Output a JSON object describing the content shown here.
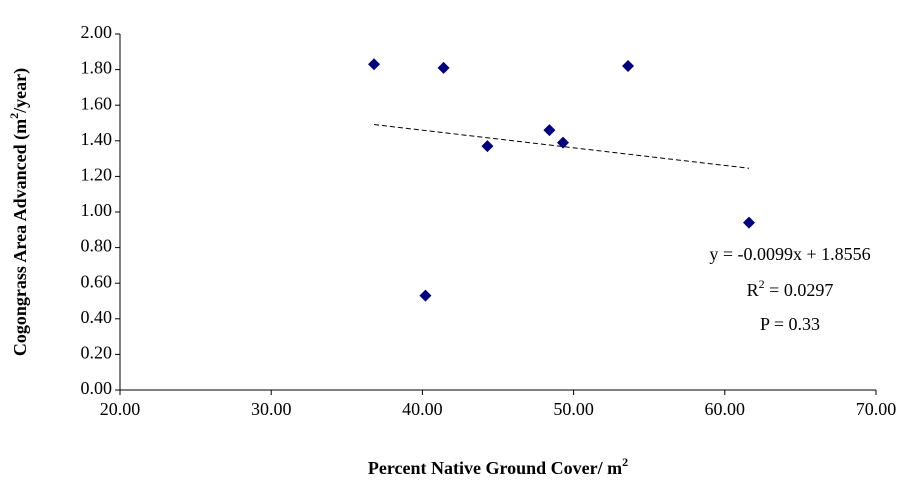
{
  "chart_data": {
    "type": "scatter",
    "x_label": [
      "Percent Native Ground Cover/ m",
      "2"
    ],
    "y_label": [
      "Cogongrass Area Advanced (m",
      "2",
      "/year)"
    ],
    "x": [
      36.8,
      41.4,
      53.6,
      48.4,
      49.3,
      44.3,
      40.2,
      61.6
    ],
    "series": [
      {
        "color": "#00007f",
        "values": [
          1.83,
          1.81,
          1.82,
          1.46,
          1.39,
          1.37,
          0.53,
          0.94
        ]
      }
    ],
    "trendline": {
      "slope": -0.0099,
      "intercept": 1.8556
    },
    "annotations": {
      "equation": "y = -0.0099x + 1.8556",
      "r2": [
        "R",
        "2",
        " = 0.0297"
      ],
      "p": "P = 0.33"
    },
    "xlim": [
      20,
      70
    ],
    "xticks": [
      {
        "value": 20,
        "label": "20.00"
      },
      {
        "value": 30,
        "label": "30.00"
      },
      {
        "value": 40,
        "label": "40.00"
      },
      {
        "value": 50,
        "label": "50.00"
      },
      {
        "value": 60,
        "label": "60.00"
      },
      {
        "value": 70,
        "label": "70.00"
      }
    ],
    "ylim": [
      0,
      2
    ],
    "yticks": [
      {
        "value": 0,
        "label": "0.00"
      },
      {
        "value": 0.2,
        "label": "0.20"
      },
      {
        "value": 0.4,
        "label": "0.40"
      },
      {
        "value": 0.6,
        "label": "0.60"
      },
      {
        "value": 0.8,
        "label": "0.80"
      },
      {
        "value": 1,
        "label": "1.00"
      },
      {
        "value": 1.2,
        "label": "1.20"
      },
      {
        "value": 1.4,
        "label": "1.40"
      },
      {
        "value": 1.6,
        "label": "1.60"
      },
      {
        "value": 1.8,
        "label": "1.80"
      },
      {
        "value": 2,
        "label": "2.00"
      }
    ],
    "grid": false
  }
}
